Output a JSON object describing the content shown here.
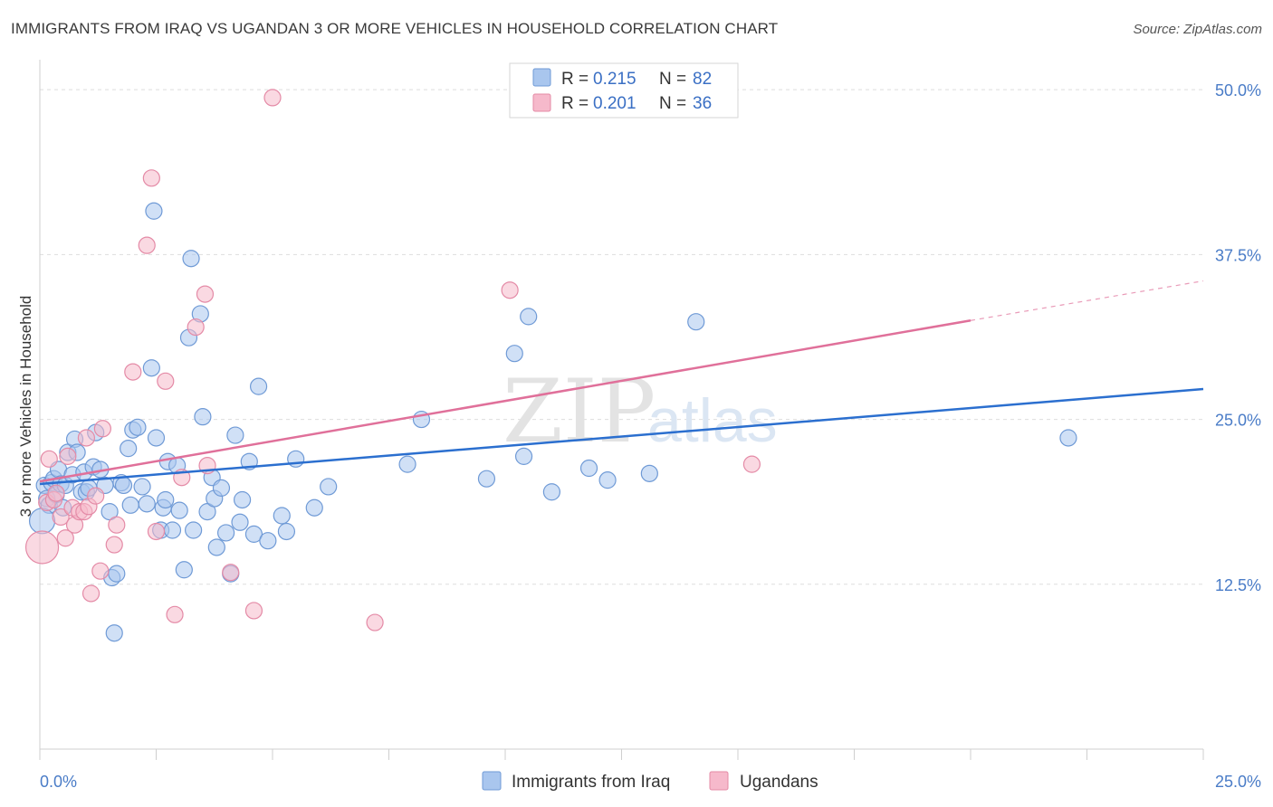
{
  "title": "IMMIGRANTS FROM IRAQ VS UGANDAN 3 OR MORE VEHICLES IN HOUSEHOLD CORRELATION CHART",
  "source": "Source: ZipAtlas.com",
  "watermark": {
    "zip": "ZIP",
    "atlas": "atlas"
  },
  "colors": {
    "blue_fill": "#a9c6ee",
    "blue_stroke": "#6f9ad6",
    "blue_line": "#2b6fcf",
    "pink_fill": "#f6b9cb",
    "pink_stroke": "#e48aa6",
    "pink_line": "#e0709a",
    "axis_text": "#4a7cc7",
    "grid": "#dddddd"
  },
  "legend": {
    "r_label": "R =",
    "n_label": "N =",
    "entries": [
      {
        "r": "0.215",
        "n": "82"
      },
      {
        "r": "0.201",
        "n": "36"
      }
    ]
  },
  "chart_data": {
    "type": "scatter",
    "title": "IMMIGRANTS FROM IRAQ VS UGANDAN 3 OR MORE VEHICLES IN HOUSEHOLD CORRELATION CHART",
    "xlabel": "",
    "ylabel": "3 or more Vehicles in Household",
    "xlim": [
      0,
      25
    ],
    "ylim": [
      0,
      52
    ],
    "x_tick_labels": [
      "0.0%",
      "25.0%"
    ],
    "y_ticks": [
      12.5,
      25.0,
      37.5,
      50.0
    ],
    "y_tick_labels": [
      "12.5%",
      "25.0%",
      "37.5%",
      "50.0%"
    ],
    "legend_position": "top-center",
    "series": [
      {
        "name": "Immigrants from Iraq",
        "r": 0.215,
        "n": 82,
        "trend": {
          "x0": 0,
          "y0": 20.1,
          "x1": 25,
          "y1": 27.3,
          "dashed_from": 25
        },
        "points": [
          [
            0.1,
            20.0
          ],
          [
            0.15,
            19.0
          ],
          [
            0.2,
            18.5
          ],
          [
            0.25,
            20.2
          ],
          [
            0.3,
            20.5
          ],
          [
            0.35,
            19.3
          ],
          [
            0.4,
            21.2
          ],
          [
            0.45,
            20.1
          ],
          [
            0.5,
            18.3
          ],
          [
            0.55,
            20.0
          ],
          [
            0.6,
            22.5
          ],
          [
            0.7,
            20.8
          ],
          [
            0.75,
            23.5
          ],
          [
            0.8,
            22.5
          ],
          [
            0.9,
            19.5
          ],
          [
            0.95,
            21.0
          ],
          [
            1.0,
            19.5
          ],
          [
            1.05,
            19.8
          ],
          [
            1.15,
            21.4
          ],
          [
            1.2,
            24.0
          ],
          [
            1.3,
            21.2
          ],
          [
            1.4,
            20.0
          ],
          [
            1.5,
            18.0
          ],
          [
            1.55,
            13.0
          ],
          [
            1.6,
            8.8
          ],
          [
            1.65,
            13.3
          ],
          [
            1.75,
            20.2
          ],
          [
            1.8,
            20.0
          ],
          [
            1.9,
            22.8
          ],
          [
            1.95,
            18.5
          ],
          [
            2.0,
            24.2
          ],
          [
            2.1,
            24.4
          ],
          [
            2.2,
            19.9
          ],
          [
            2.3,
            18.6
          ],
          [
            2.4,
            28.9
          ],
          [
            2.45,
            40.8
          ],
          [
            2.5,
            23.6
          ],
          [
            2.6,
            16.6
          ],
          [
            2.65,
            18.3
          ],
          [
            2.7,
            18.9
          ],
          [
            2.75,
            21.8
          ],
          [
            2.85,
            16.6
          ],
          [
            2.95,
            21.5
          ],
          [
            3.0,
            18.1
          ],
          [
            3.1,
            13.6
          ],
          [
            3.2,
            31.2
          ],
          [
            3.25,
            37.2
          ],
          [
            3.3,
            16.6
          ],
          [
            3.45,
            33.0
          ],
          [
            3.5,
            25.2
          ],
          [
            3.6,
            18.0
          ],
          [
            3.7,
            20.6
          ],
          [
            3.75,
            19.0
          ],
          [
            3.8,
            15.3
          ],
          [
            3.9,
            19.8
          ],
          [
            4.0,
            16.4
          ],
          [
            4.1,
            13.3
          ],
          [
            4.2,
            23.8
          ],
          [
            4.3,
            17.2
          ],
          [
            4.35,
            18.9
          ],
          [
            4.5,
            21.8
          ],
          [
            4.6,
            16.3
          ],
          [
            4.7,
            27.5
          ],
          [
            4.9,
            15.8
          ],
          [
            5.2,
            17.7
          ],
          [
            5.3,
            16.5
          ],
          [
            5.5,
            22.0
          ],
          [
            5.9,
            18.3
          ],
          [
            6.2,
            19.9
          ],
          [
            7.9,
            21.6
          ],
          [
            8.2,
            25.0
          ],
          [
            9.6,
            20.5
          ],
          [
            10.2,
            30.0
          ],
          [
            10.4,
            22.2
          ],
          [
            10.5,
            32.8
          ],
          [
            11.0,
            19.5
          ],
          [
            11.8,
            21.3
          ],
          [
            12.2,
            20.4
          ],
          [
            13.1,
            20.9
          ],
          [
            14.1,
            32.4
          ],
          [
            22.1,
            23.6
          ],
          [
            0.05,
            17.3
          ]
        ]
      },
      {
        "name": "Ugandans",
        "r": 0.201,
        "n": 36,
        "trend": {
          "x0": 0,
          "y0": 20.3,
          "x1": 20,
          "y1": 32.5,
          "dashed_from": 20,
          "dashed_to": 25,
          "dashed_y": 35.5
        },
        "points": [
          [
            0.05,
            15.3
          ],
          [
            0.15,
            18.7
          ],
          [
            0.2,
            22.0
          ],
          [
            0.3,
            18.9
          ],
          [
            0.35,
            19.4
          ],
          [
            0.45,
            17.6
          ],
          [
            0.55,
            16.0
          ],
          [
            0.6,
            22.2
          ],
          [
            0.7,
            18.3
          ],
          [
            0.75,
            17.0
          ],
          [
            0.85,
            18.0
          ],
          [
            0.95,
            18.0
          ],
          [
            1.0,
            23.6
          ],
          [
            1.05,
            18.4
          ],
          [
            1.1,
            11.8
          ],
          [
            1.2,
            19.2
          ],
          [
            1.3,
            13.5
          ],
          [
            1.35,
            24.3
          ],
          [
            1.6,
            15.5
          ],
          [
            1.65,
            17.0
          ],
          [
            2.0,
            28.6
          ],
          [
            2.3,
            38.2
          ],
          [
            2.4,
            43.3
          ],
          [
            2.5,
            16.5
          ],
          [
            2.7,
            27.9
          ],
          [
            2.9,
            10.2
          ],
          [
            3.05,
            20.6
          ],
          [
            3.35,
            32.0
          ],
          [
            3.55,
            34.5
          ],
          [
            3.6,
            21.5
          ],
          [
            4.1,
            13.4
          ],
          [
            4.6,
            10.5
          ],
          [
            5.0,
            49.4
          ],
          [
            7.2,
            9.6
          ],
          [
            10.1,
            34.8
          ],
          [
            15.3,
            21.6
          ]
        ]
      }
    ]
  }
}
